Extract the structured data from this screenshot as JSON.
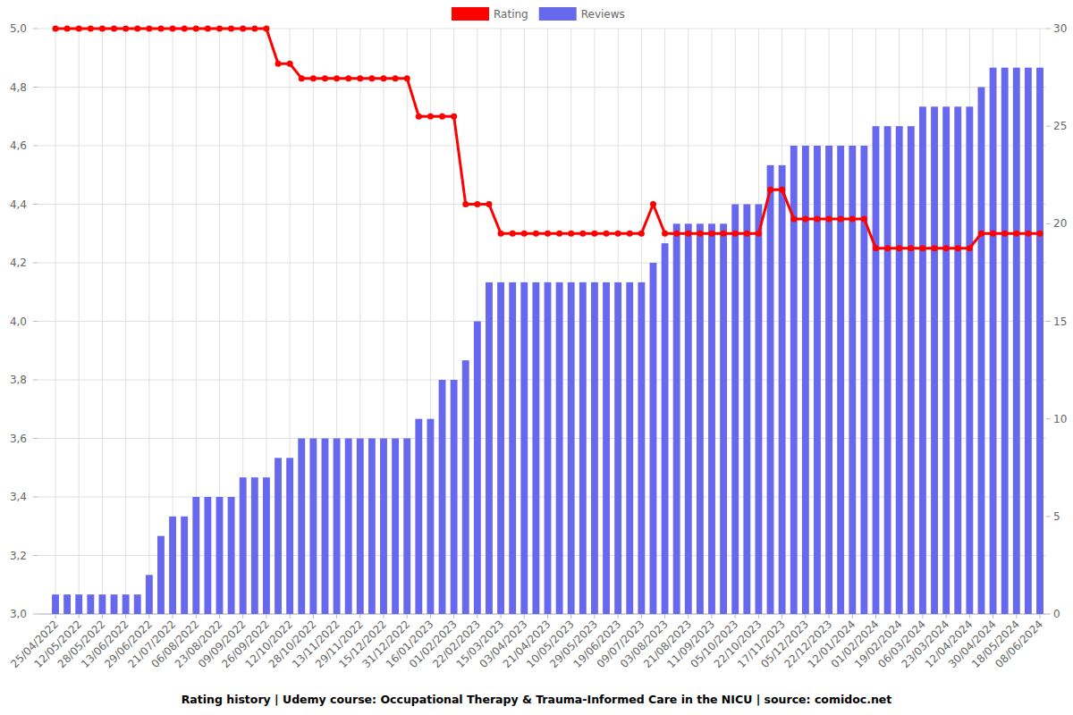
{
  "chart_data": {
    "type": "bar",
    "title": "Rating history | Udemy course: Occupational Therapy & Trauma-Informed Care in the NICU | source: comidoc.net",
    "categories": [
      "25/04/2022",
      null,
      "12/05/2022",
      null,
      "28/05/2022",
      null,
      "13/06/2022",
      null,
      "29/06/2022",
      null,
      "21/07/2022",
      null,
      "06/08/2022",
      null,
      "23/08/2022",
      null,
      "09/09/2022",
      null,
      "26/09/2022",
      null,
      "12/10/2022",
      null,
      "28/10/2022",
      null,
      "13/11/2022",
      null,
      "29/11/2022",
      null,
      "15/12/2022",
      null,
      "31/12/2022",
      null,
      "16/01/2023",
      null,
      "01/02/2023",
      null,
      "22/02/2023",
      null,
      "15/03/2023",
      null,
      "03/04/2023",
      null,
      "21/04/2023",
      null,
      "10/05/2023",
      null,
      "29/05/2023",
      null,
      "19/06/2023",
      null,
      "09/07/2023",
      null,
      "03/08/2023",
      null,
      "21/08/2023",
      null,
      "11/09/2023",
      null,
      "05/10/2023",
      null,
      "22/10/2023",
      null,
      "17/11/2023",
      null,
      "05/12/2023",
      null,
      "22/12/2023",
      null,
      "12/01/2024",
      null,
      "01/02/2024",
      null,
      "19/02/2024",
      null,
      "06/03/2024",
      null,
      "23/03/2024",
      null,
      "12/04/2024",
      null,
      "30/04/2024",
      null,
      "18/05/2024",
      null,
      "08/06/2024"
    ],
    "series": [
      {
        "name": "Rating",
        "type": "line",
        "color": "#ff0000",
        "marker": "circle",
        "values": [
          5,
          5,
          5,
          5,
          5,
          5,
          5,
          5,
          5,
          5,
          5,
          5,
          5,
          5,
          5,
          5,
          5,
          5,
          5,
          4.88,
          4.88,
          4.83,
          4.83,
          4.83,
          4.83,
          4.83,
          4.83,
          4.83,
          4.83,
          4.83,
          4.83,
          4.7,
          4.7,
          4.7,
          4.7,
          4.4,
          4.4,
          4.4,
          4.3,
          4.3,
          4.3,
          4.3,
          4.3,
          4.3,
          4.3,
          4.3,
          4.3,
          4.3,
          4.3,
          4.3,
          4.3,
          4.4,
          4.3,
          4.3,
          4.3,
          4.3,
          4.3,
          4.3,
          4.3,
          4.3,
          4.3,
          4.45,
          4.45,
          4.35,
          4.35,
          4.35,
          4.35,
          4.35,
          4.35,
          4.35,
          4.25,
          4.25,
          4.25,
          4.25,
          4.25,
          4.25,
          4.25,
          4.25,
          4.25,
          4.3,
          4.3,
          4.3,
          4.3,
          4.3,
          4.3
        ]
      },
      {
        "name": "Reviews",
        "type": "bar",
        "color": "#6868ee",
        "axis": "y2",
        "values": [
          1,
          1,
          1,
          1,
          1,
          1,
          1,
          1,
          2,
          4,
          5,
          5,
          6,
          6,
          6,
          6,
          7,
          7,
          7,
          8,
          8,
          9,
          9,
          9,
          9,
          9,
          9,
          9,
          9,
          9,
          9,
          10,
          10,
          12,
          12,
          13,
          15,
          17,
          17,
          17,
          17,
          17,
          17,
          17,
          17,
          17,
          17,
          17,
          17,
          17,
          17,
          18,
          19,
          20,
          20,
          20,
          20,
          20,
          21,
          21,
          21,
          23,
          23,
          24,
          24,
          24,
          24,
          24,
          24,
          24,
          25,
          25,
          25,
          25,
          26,
          26,
          26,
          26,
          26,
          27,
          28,
          28,
          28,
          28,
          28
        ]
      }
    ],
    "ylim": [
      3,
      5
    ],
    "yticks": [
      {
        "value": 3,
        "label": "3,0"
      },
      {
        "value": 3.2,
        "label": "3,2"
      },
      {
        "value": 3.4,
        "label": "3,4"
      },
      {
        "value": 3.6,
        "label": "3,6"
      },
      {
        "value": 3.8,
        "label": "3,8"
      },
      {
        "value": 4,
        "label": "4,0"
      },
      {
        "value": 4.2,
        "label": "4,2"
      },
      {
        "value": 4.4,
        "label": "4,4"
      },
      {
        "value": 4.6,
        "label": "4,6"
      },
      {
        "value": 4.8,
        "label": "4,8"
      },
      {
        "value": 5,
        "label": "5,0"
      }
    ],
    "y2lim": [
      0,
      30
    ],
    "y2ticks": [
      0,
      5,
      10,
      15,
      20,
      25,
      30
    ],
    "grid": true,
    "legend": "top"
  }
}
